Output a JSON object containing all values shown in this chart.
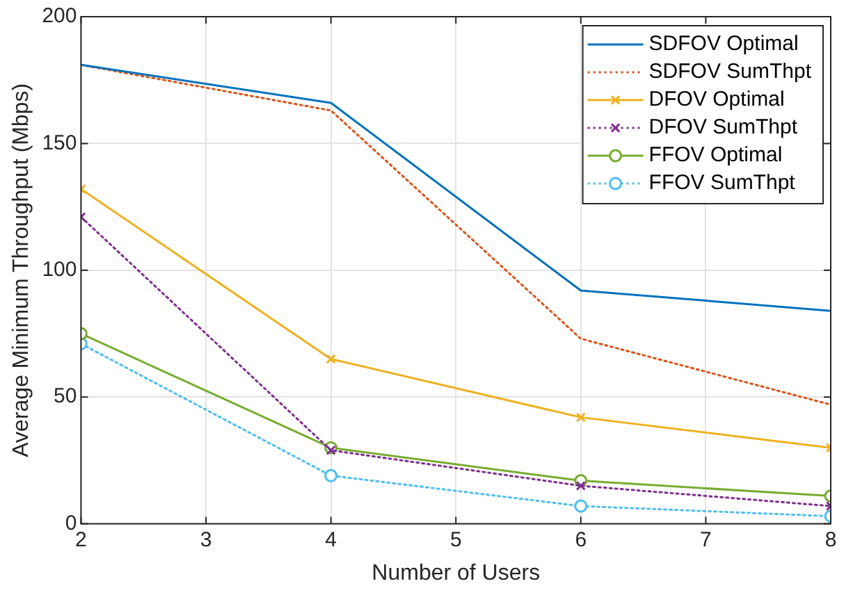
{
  "chart_data": {
    "type": "line",
    "xlabel": "Number of Users",
    "ylabel": "Average Minimum Throughput (Mbps)",
    "x": [
      2,
      4,
      6,
      8
    ],
    "xlim": [
      2,
      8
    ],
    "xticks": [
      2,
      3,
      4,
      5,
      6,
      7,
      8
    ],
    "ylim": [
      0,
      200
    ],
    "yticks": [
      0,
      50,
      100,
      150,
      200
    ],
    "grid": true,
    "legend": "top right",
    "series": [
      {
        "name": "SDFOV Optimal",
        "color": "#0072bd",
        "values": [
          181,
          166,
          92,
          84
        ],
        "marker": "none",
        "line_style": "solid"
      },
      {
        "name": "SDFOV SumThpt",
        "color": "#d95319",
        "values": [
          181,
          163,
          73,
          47
        ],
        "marker": "none",
        "line_style": "dotted"
      },
      {
        "name": "DFOV Optimal",
        "color": "#edb120",
        "values": [
          132,
          65,
          42,
          30
        ],
        "marker": "cross",
        "line_style": "solid"
      },
      {
        "name": "DFOV SumThpt",
        "color": "#7e2f8e",
        "values": [
          121,
          29,
          15,
          7
        ],
        "marker": "cross",
        "line_style": "dotted"
      },
      {
        "name": "FFOV Optimal",
        "color": "#77ac30",
        "values": [
          75,
          30,
          17,
          11
        ],
        "marker": "circle",
        "line_style": "solid"
      },
      {
        "name": "FFOV SumThpt",
        "color": "#4dbeee",
        "values": [
          71,
          19,
          7,
          3
        ],
        "marker": "circle",
        "line_style": "dotted"
      }
    ]
  }
}
